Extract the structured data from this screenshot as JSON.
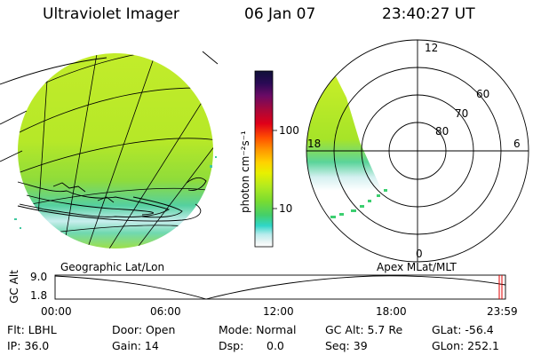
{
  "header": {
    "title": "Ultraviolet Imager",
    "date": "06 Jan 07",
    "time": "23:40:27 UT"
  },
  "colorbar": {
    "unit": "photon cm⁻²s⁻¹",
    "ticks": [
      "100",
      "10"
    ],
    "colors": [
      "#101038",
      "#2a0a55",
      "#6a0a65",
      "#a8083a",
      "#e00018",
      "#ff5000",
      "#ff9800",
      "#ffd200",
      "#e8f000",
      "#b0ea20",
      "#7adc30",
      "#44cf6a",
      "#2fd6c8",
      "#b8ecec",
      "#e8f4f4",
      "#ffffff"
    ]
  },
  "polar": {
    "mlt_labels": {
      "top": "12",
      "left": "18",
      "right": "6",
      "bottom": "0"
    },
    "lat_labels": [
      "60",
      "70",
      "80"
    ]
  },
  "map_labels": {
    "left": "Geographic Lat/Lon",
    "right": "Apex MLat/MLT"
  },
  "timeline": {
    "ylabel": "GC Alt",
    "y_ticks": [
      "9.0",
      "1.8"
    ],
    "x_ticks": [
      "00:00",
      "06:00",
      "12:00",
      "18:00",
      "23:59"
    ],
    "marker_color": "#e00000"
  },
  "info": {
    "filter": "Flt: LBHL",
    "ip": "IP: 36.0",
    "door": "Door: Open",
    "gain": "Gain: 14",
    "mode": "Mode: Normal",
    "dsp_label": "Dsp:",
    "dsp_value": "0.0",
    "gc_alt": "GC Alt: 5.7 Re",
    "seq": "Seq: 39",
    "glat": "GLat: -56.4",
    "glon": "GLon: 252.1"
  }
}
